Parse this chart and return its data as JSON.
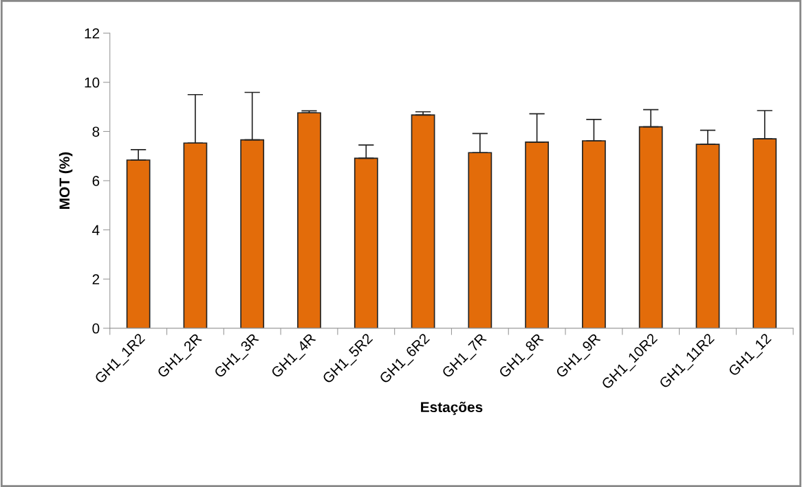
{
  "chart_data": {
    "type": "bar",
    "xlabel": "Estações",
    "ylabel": "MOT (%)",
    "categories": [
      "GH1_1R2",
      "GH1_2R",
      "GH1_3R",
      "GH1_4R",
      "GH1_5R2",
      "GH1_6R2",
      "GH1_7R",
      "GH1_8R",
      "GH1_9R",
      "GH1_10R2",
      "GH1_11R2",
      "GH1_12"
    ],
    "values": [
      6.84,
      7.53,
      7.66,
      8.76,
      6.91,
      8.67,
      7.14,
      7.57,
      7.62,
      8.19,
      7.48,
      7.7
    ],
    "errors": [
      [
        6.84,
        7.26
      ],
      [
        7.53,
        9.5
      ],
      [
        7.66,
        9.59
      ],
      [
        8.76,
        8.84
      ],
      [
        6.91,
        7.45
      ],
      [
        8.67,
        8.8
      ],
      [
        7.14,
        7.92
      ],
      [
        7.57,
        8.72
      ],
      [
        7.62,
        8.49
      ],
      [
        8.19,
        8.89
      ],
      [
        7.48,
        8.05
      ],
      [
        7.7,
        8.85
      ]
    ],
    "color": "#e36c0a",
    "ylim": [
      0,
      12
    ],
    "yticks": [
      0,
      2,
      4,
      6,
      8,
      10,
      12
    ],
    "grid": false,
    "legend": false
  }
}
